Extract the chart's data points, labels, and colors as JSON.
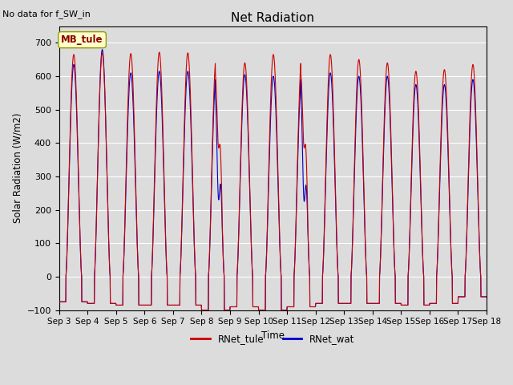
{
  "title": "Net Radiation",
  "subtitle": "No data for f_SW_in",
  "ylabel": "Solar Radiation (W/m2)",
  "xlabel": "Time",
  "ylim": [
    -100,
    750
  ],
  "yticks": [
    -100,
    0,
    100,
    200,
    300,
    400,
    500,
    600,
    700
  ],
  "xtick_labels": [
    "Sep 3",
    "Sep 4",
    "Sep 5",
    "Sep 6",
    "Sep 7",
    "Sep 8",
    "Sep 9",
    "Sep 10",
    "Sep 11",
    "Sep 12",
    "Sep 13",
    "Sep 14",
    "Sep 15",
    "Sep 16",
    "Sep 17",
    "Sep 18"
  ],
  "legend_labels": [
    "RNet_tule",
    "RNet_wat"
  ],
  "legend_colors": [
    "#cc0000",
    "#0000cc"
  ],
  "text_box_label": "MB_tule",
  "bg_color": "#dcdcdc",
  "plot_bg_color": "#dcdcdc",
  "n_days": 15,
  "peak_tule": [
    665,
    670,
    668,
    672,
    670,
    660,
    640,
    665,
    660,
    665,
    650,
    640,
    615,
    620,
    635
  ],
  "peak_wat": [
    635,
    680,
    610,
    615,
    615,
    610,
    605,
    600,
    610,
    610,
    600,
    600,
    575,
    575,
    590
  ],
  "night_val": [
    -75,
    -80,
    -85,
    -85,
    -85,
    -100,
    -90,
    -100,
    -90,
    -80,
    -80,
    -80,
    -85,
    -80,
    -60
  ],
  "cloudy_days_tule": {
    "6": 385,
    "9": 385
  },
  "cloudy_days_wat": {
    "6": 230,
    "9": 225
  }
}
